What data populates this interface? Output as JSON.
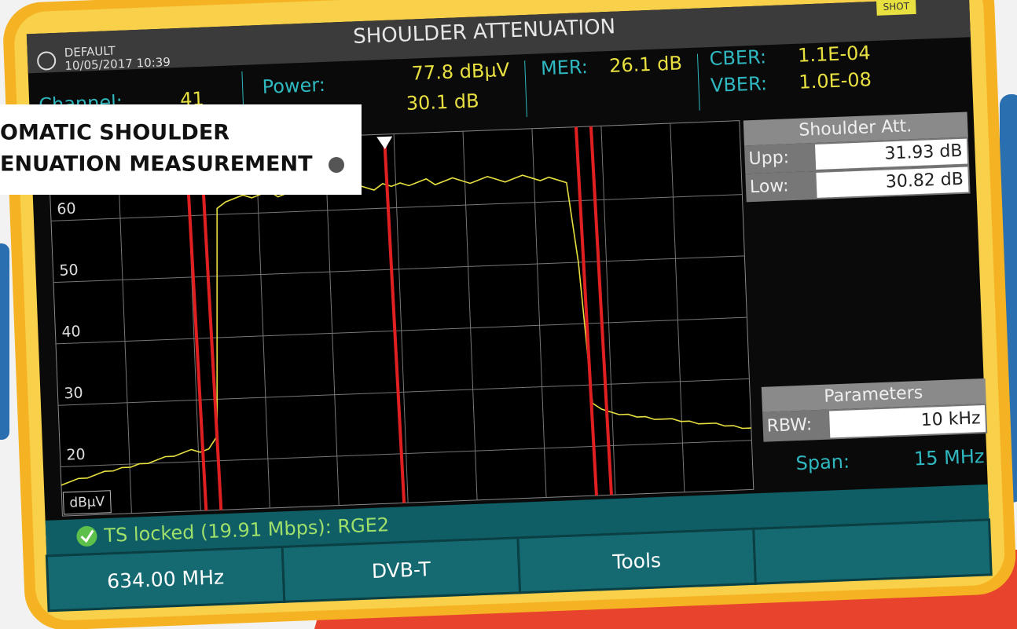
{
  "header": {
    "title": "SHOULDER ATTENUATION",
    "profile": "DEFAULT",
    "datetime": "10/05/2017 10:39",
    "badge": "SHOT"
  },
  "measurements": {
    "channel": {
      "label": "Channel:",
      "value": "41"
    },
    "power": {
      "label": "Power:",
      "value": "77.8 dBµV",
      "value2": "30.1 dB"
    },
    "mer": {
      "label": "MER:",
      "value": "26.1 dB"
    },
    "cber": {
      "label": "CBER:",
      "value": "1.1E-04"
    },
    "vber": {
      "label": "VBER:",
      "value": "1.0E-08"
    }
  },
  "overlay": {
    "line1": "OMATIC SHOULDER",
    "line2": "ENUATION MEASUREMENT"
  },
  "shoulder": {
    "title": "Shoulder Att.",
    "rows": [
      [
        "Upp:",
        "31.93 dB"
      ],
      [
        "Low:",
        "30.82 dB"
      ]
    ]
  },
  "parameters": {
    "title": "Parameters",
    "rbw_label": "RBW:",
    "rbw": "10 kHz",
    "span_label": "Span:",
    "span": "15 MHz"
  },
  "spectrum": {
    "type": "line",
    "y_unit": "dBµV",
    "ylim": [
      12,
      72
    ],
    "yticks": [
      20,
      30,
      40,
      50,
      60
    ],
    "grid": true,
    "color": "#e8e040",
    "values": [
      17,
      17.5,
      18,
      18,
      18.5,
      19,
      19,
      19.5,
      19.5,
      20,
      20,
      20.5,
      21,
      21,
      21.5,
      22,
      21.5,
      22,
      24,
      61,
      62,
      62.5,
      63,
      62.5,
      63,
      63.5,
      62.5,
      63,
      63.5,
      63,
      63.5,
      64,
      63,
      63.5,
      63,
      64,
      63.5,
      63,
      64,
      63.5,
      64,
      63.5,
      64,
      64.5,
      63.5,
      64,
      64.5,
      64,
      63.5,
      64,
      64.5,
      64,
      63.5,
      64,
      64.5,
      64,
      63.5,
      64,
      63.5,
      63,
      50,
      27,
      26,
      25.5,
      25,
      25,
      24.5,
      24.5,
      24,
      24,
      24,
      23.5,
      23.5,
      23,
      23,
      23,
      22.5,
      22.5,
      22,
      22
    ]
  },
  "status": "TS locked (19.91 Mbps): RGE2",
  "softkeys": [
    "634.00 MHz",
    "DVB-T",
    "Tools"
  ]
}
